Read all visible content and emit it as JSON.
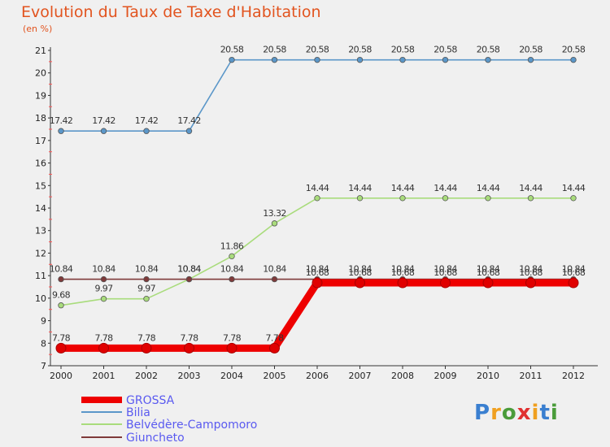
{
  "chart_data": {
    "type": "line",
    "title": "Evolution du Taux de Taxe d'Habitation",
    "subtitle": "(en %)",
    "x": [
      "2000",
      "2001",
      "2002",
      "2003",
      "2004",
      "2005",
      "2006",
      "2007",
      "2008",
      "2009",
      "2010",
      "2011",
      "2012"
    ],
    "ylim": [
      7,
      21
    ],
    "yticks": [
      7,
      8,
      9,
      10,
      11,
      12,
      13,
      14,
      15,
      16,
      17,
      18,
      19,
      20,
      21
    ],
    "grid": false,
    "legend_position": "bottom-left",
    "series": [
      {
        "name": "GROSSA",
        "color": "#ee0000",
        "values": [
          7.78,
          7.78,
          7.78,
          7.78,
          7.78,
          7.78,
          10.68,
          10.68,
          10.68,
          10.68,
          10.68,
          10.68,
          10.68
        ],
        "labels": [
          "7.78",
          "7.78",
          "7.78",
          "7.78",
          "7.78",
          "7.78",
          "10.68",
          "10.68",
          "10.68",
          "10.68",
          "10.68",
          "10.68",
          "10.68"
        ]
      },
      {
        "name": "Bilia",
        "color": "#5b97c9",
        "values": [
          17.42,
          17.42,
          17.42,
          17.42,
          20.58,
          20.58,
          20.58,
          20.58,
          20.58,
          20.58,
          20.58,
          20.58,
          20.58
        ],
        "labels": [
          "17.42",
          "17.42",
          "17.42",
          "17.42",
          "20.58",
          "20.58",
          "20.58",
          "20.58",
          "20.58",
          "20.58",
          "20.58",
          "20.58",
          "20.58"
        ]
      },
      {
        "name": "Belvédère-Campomoro",
        "color": "#a9dc7c",
        "values": [
          9.68,
          9.97,
          9.97,
          10.84,
          11.86,
          13.32,
          14.44,
          14.44,
          14.44,
          14.44,
          14.44,
          14.44,
          14.44
        ],
        "labels": [
          "9.68",
          "9.97",
          "9.97",
          "10.84",
          "11.86",
          "13.32",
          "14.44",
          "14.44",
          "14.44",
          "14.44",
          "14.44",
          "14.44",
          "14.44"
        ]
      },
      {
        "name": "Giuncheto",
        "color": "#7f3a3a",
        "values": [
          10.84,
          10.84,
          10.84,
          10.84,
          10.84,
          10.84,
          10.84,
          10.84,
          10.84,
          10.84,
          10.84,
          10.84,
          10.84
        ],
        "labels": [
          "10.84",
          "10.84",
          "10.84",
          "10.84",
          "10.84",
          "10.84",
          "10.84",
          "10.84",
          "10.84",
          "10.84",
          "10.84",
          "10.84",
          "10.84"
        ]
      }
    ]
  },
  "brand": {
    "text": "Proxiti"
  }
}
